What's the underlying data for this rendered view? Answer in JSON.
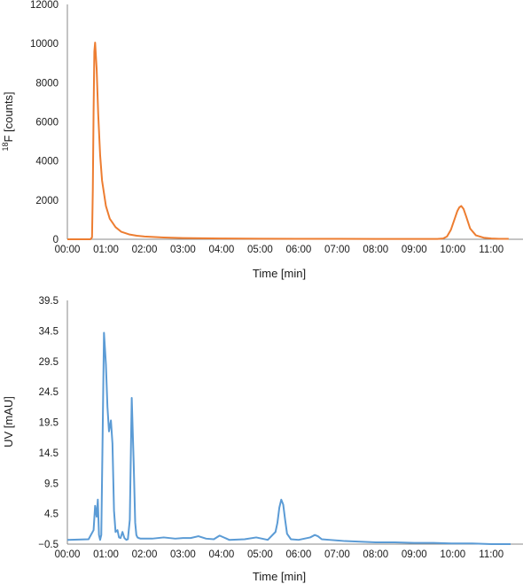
{
  "chart_data": [
    {
      "type": "line",
      "xlabel": "Time [min]",
      "ylabel_sup": "18",
      "ylabel_rest": "F [counts]",
      "xlim": [
        0,
        11.5
      ],
      "ylim": [
        0,
        12000
      ],
      "x_ticks": [
        0,
        1,
        2,
        3,
        4,
        5,
        6,
        7,
        8,
        9,
        10,
        11
      ],
      "x_tick_labels": [
        "00:00",
        "01:00",
        "02:00",
        "03:00",
        "04:00",
        "05:00",
        "06:00",
        "07:00",
        "08:00",
        "09:00",
        "10:00",
        "11:00"
      ],
      "y_ticks": [
        0,
        2000,
        4000,
        6000,
        8000,
        10000,
        12000
      ],
      "y_tick_labels": [
        "0",
        "2000",
        "4000",
        "6000",
        "8000",
        "10000",
        "12000"
      ],
      "grid": false,
      "color": "#ED7D31",
      "series": [
        {
          "x": [
            0,
            0.6,
            0.64,
            0.66,
            0.68,
            0.7,
            0.72,
            0.76,
            0.8,
            0.85,
            0.9,
            1.0,
            1.1,
            1.25,
            1.4,
            1.6,
            1.8,
            2.0,
            2.5,
            3.0,
            4.0,
            5.0,
            6.0,
            7.0,
            8.0,
            9.0,
            9.6,
            9.75,
            9.85,
            9.95,
            10.05,
            10.12,
            10.17,
            10.22,
            10.28,
            10.35,
            10.45,
            10.6,
            10.8,
            11.0,
            11.2,
            11.45
          ],
          "y": [
            0,
            0,
            100,
            2500,
            6500,
            9600,
            10050,
            8700,
            6400,
            4300,
            3000,
            1700,
            1050,
            620,
            380,
            250,
            180,
            140,
            90,
            60,
            40,
            30,
            25,
            20,
            18,
            15,
            15,
            40,
            140,
            480,
            1050,
            1450,
            1630,
            1700,
            1550,
            1150,
            550,
            200,
            80,
            40,
            25,
            20
          ]
        }
      ]
    },
    {
      "type": "line",
      "xlabel": "Time [min]",
      "ylabel": "UV [mAU]",
      "xlim": [
        0,
        11.5
      ],
      "ylim": [
        -0.5,
        39.5
      ],
      "x_ticks": [
        0,
        1,
        2,
        3,
        4,
        5,
        6,
        7,
        8,
        9,
        10,
        11
      ],
      "x_tick_labels": [
        "00:00",
        "01:00",
        "02:00",
        "03:00",
        "04:00",
        "05:00",
        "06:00",
        "07:00",
        "08:00",
        "09:00",
        "10:00",
        "11:00"
      ],
      "y_ticks": [
        -0.5,
        4.5,
        9.5,
        14.5,
        19.5,
        24.5,
        29.5,
        34.5,
        39.5
      ],
      "y_tick_labels": [
        "−0.5",
        "4.5",
        "9.5",
        "14.5",
        "19.5",
        "24.5",
        "29.5",
        "34.5",
        "39.5"
      ],
      "grid": false,
      "color": "#5B9BD5",
      "series": [
        {
          "x": [
            0,
            0.55,
            0.68,
            0.72,
            0.76,
            0.79,
            0.82,
            0.85,
            0.88,
            0.91,
            0.95,
            1.0,
            1.04,
            1.08,
            1.13,
            1.17,
            1.21,
            1.25,
            1.3,
            1.34,
            1.38,
            1.43,
            1.48,
            1.53,
            1.57,
            1.62,
            1.67,
            1.72,
            1.76,
            1.79,
            1.82,
            1.85,
            1.9,
            2.0,
            2.2,
            2.5,
            2.8,
            3.0,
            3.2,
            3.4,
            3.6,
            3.8,
            3.95,
            4.2,
            4.6,
            4.9,
            5.2,
            5.4,
            5.45,
            5.5,
            5.55,
            5.6,
            5.65,
            5.7,
            5.8,
            6.0,
            6.3,
            6.42,
            6.5,
            6.6,
            6.8,
            7.2,
            7.6,
            8.0,
            8.5,
            9.0,
            9.5,
            10.0,
            10.5,
            11.0,
            11.5
          ],
          "y": [
            0.2,
            0.3,
            1.8,
            5.8,
            4.0,
            6.8,
            1.0,
            0.2,
            1.0,
            15,
            34.2,
            29,
            22,
            18,
            19.8,
            16,
            5,
            1.5,
            1.8,
            0.6,
            0.5,
            1.5,
            0.5,
            0.2,
            0.3,
            3.5,
            23.5,
            13,
            3,
            1,
            0.6,
            0.5,
            0.4,
            0.4,
            0.4,
            0.6,
            0.4,
            0.5,
            0.5,
            0.8,
            0.4,
            0.3,
            0.9,
            0.2,
            0.3,
            0.6,
            0.2,
            1.5,
            3,
            5.5,
            6.8,
            6.0,
            3.5,
            1.2,
            0.3,
            0.2,
            0.6,
            1.0,
            0.8,
            0.3,
            0.2,
            0.0,
            -0.1,
            -0.2,
            -0.2,
            -0.3,
            -0.3,
            -0.4,
            -0.4,
            -0.5,
            -0.5
          ]
        }
      ]
    }
  ]
}
